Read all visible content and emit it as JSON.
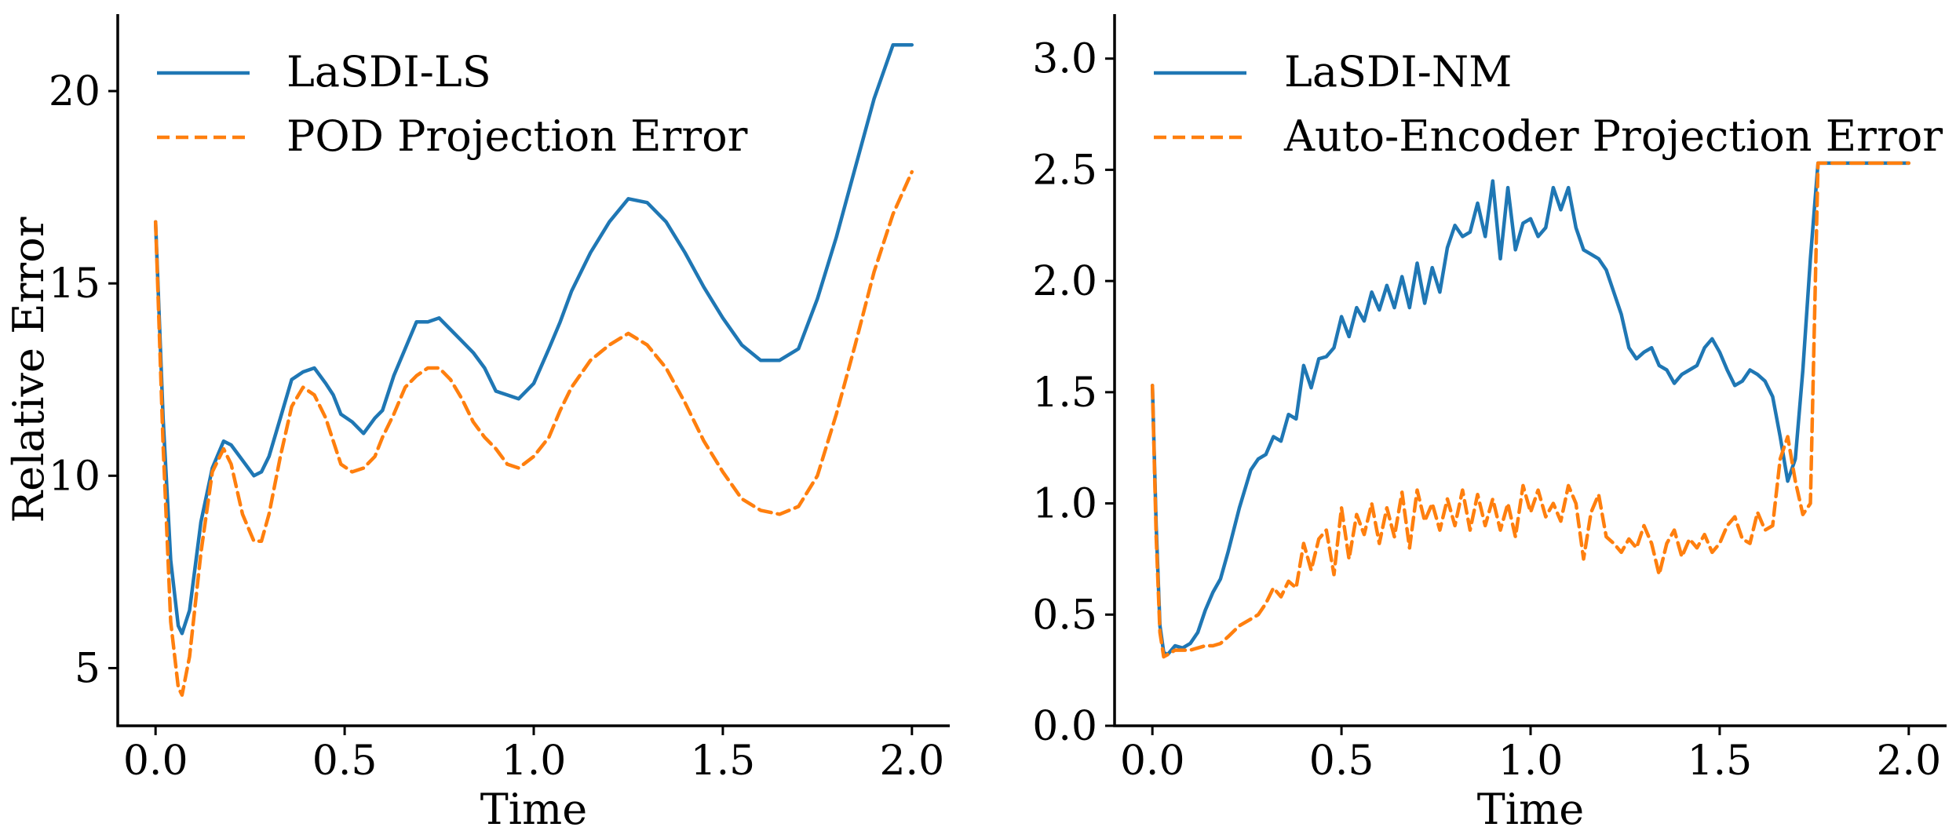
{
  "chart_data": [
    {
      "type": "line",
      "xlabel": "Time",
      "ylabel": "Relative Error",
      "xlim": [
        -0.1,
        2.1
      ],
      "ylim": [
        3.5,
        22.0
      ],
      "xticks": [
        0.0,
        0.5,
        1.0,
        1.5,
        2.0
      ],
      "xtick_labels": [
        "0.0",
        "0.5",
        "1.0",
        "1.5",
        "2.0"
      ],
      "yticks": [
        5,
        10,
        15,
        20
      ],
      "ytick_labels": [
        "5",
        "10",
        "15",
        "20"
      ],
      "grid": false,
      "legend_position": "top-left",
      "series": [
        {
          "name": "LaSDI-LS",
          "color": "#1f77b4",
          "style": "solid",
          "x": [
            0.0,
            0.02,
            0.04,
            0.06,
            0.07,
            0.09,
            0.12,
            0.15,
            0.18,
            0.2,
            0.23,
            0.26,
            0.28,
            0.3,
            0.33,
            0.36,
            0.39,
            0.42,
            0.45,
            0.47,
            0.49,
            0.52,
            0.55,
            0.58,
            0.6,
            0.63,
            0.66,
            0.69,
            0.72,
            0.75,
            0.78,
            0.81,
            0.84,
            0.87,
            0.9,
            0.93,
            0.96,
            1.0,
            1.04,
            1.07,
            1.1,
            1.15,
            1.2,
            1.25,
            1.3,
            1.35,
            1.4,
            1.45,
            1.5,
            1.55,
            1.6,
            1.65,
            1.7,
            1.75,
            1.8,
            1.85,
            1.9,
            1.95,
            2.0
          ],
          "y": [
            16.6,
            11.5,
            7.8,
            6.1,
            5.9,
            6.5,
            8.8,
            10.2,
            10.9,
            10.8,
            10.4,
            10.0,
            10.1,
            10.5,
            11.5,
            12.5,
            12.7,
            12.8,
            12.4,
            12.1,
            11.6,
            11.4,
            11.1,
            11.5,
            11.7,
            12.6,
            13.3,
            14.0,
            14.0,
            14.1,
            13.8,
            13.5,
            13.2,
            12.8,
            12.2,
            12.1,
            12.0,
            12.4,
            13.3,
            14.0,
            14.8,
            15.8,
            16.6,
            17.2,
            17.1,
            16.6,
            15.8,
            14.9,
            14.1,
            13.4,
            13.0,
            13.0,
            13.3,
            14.6,
            16.2,
            18.0,
            19.8,
            21.2,
            21.2
          ]
        },
        {
          "name": "POD Projection Error",
          "color": "#ff7f0e",
          "style": "dashed",
          "x": [
            0.0,
            0.02,
            0.04,
            0.06,
            0.07,
            0.09,
            0.12,
            0.15,
            0.18,
            0.2,
            0.23,
            0.26,
            0.28,
            0.3,
            0.33,
            0.36,
            0.39,
            0.42,
            0.45,
            0.47,
            0.49,
            0.52,
            0.55,
            0.58,
            0.6,
            0.63,
            0.66,
            0.69,
            0.72,
            0.75,
            0.78,
            0.81,
            0.84,
            0.87,
            0.9,
            0.93,
            0.96,
            1.0,
            1.04,
            1.07,
            1.1,
            1.15,
            1.2,
            1.25,
            1.3,
            1.35,
            1.4,
            1.45,
            1.5,
            1.55,
            1.6,
            1.65,
            1.7,
            1.75,
            1.8,
            1.85,
            1.9,
            1.95,
            2.0
          ],
          "y": [
            16.6,
            10.8,
            6.2,
            4.5,
            4.3,
            5.3,
            8.0,
            10.1,
            10.7,
            10.3,
            9.0,
            8.3,
            8.3,
            9.0,
            10.5,
            11.8,
            12.3,
            12.1,
            11.5,
            10.9,
            10.3,
            10.1,
            10.2,
            10.5,
            11.0,
            11.6,
            12.3,
            12.6,
            12.8,
            12.8,
            12.5,
            12.0,
            11.4,
            11.0,
            10.7,
            10.3,
            10.2,
            10.5,
            11.0,
            11.7,
            12.3,
            13.0,
            13.4,
            13.7,
            13.4,
            12.8,
            11.9,
            10.9,
            10.1,
            9.4,
            9.1,
            9.0,
            9.2,
            10.0,
            11.6,
            13.4,
            15.3,
            16.8,
            17.9
          ]
        }
      ]
    },
    {
      "type": "line",
      "xlabel": "Time",
      "ylabel": "",
      "xlim": [
        -0.1,
        2.1
      ],
      "ylim": [
        0.0,
        3.2
      ],
      "xticks": [
        0.0,
        0.5,
        1.0,
        1.5,
        2.0
      ],
      "xtick_labels": [
        "0.0",
        "0.5",
        "1.0",
        "1.5",
        "2.0"
      ],
      "yticks": [
        0.0,
        0.5,
        1.0,
        1.5,
        2.0,
        2.5,
        3.0
      ],
      "ytick_labels": [
        "0.0",
        "0.5",
        "1.0",
        "1.5",
        "2.0",
        "2.5",
        "3.0"
      ],
      "grid": false,
      "legend_position": "top-left",
      "series": [
        {
          "name": "LaSDI-NM",
          "color": "#1f77b4",
          "style": "solid",
          "x": [
            0.0,
            0.01,
            0.02,
            0.03,
            0.04,
            0.06,
            0.08,
            0.1,
            0.12,
            0.14,
            0.16,
            0.18,
            0.2,
            0.23,
            0.26,
            0.28,
            0.3,
            0.32,
            0.34,
            0.36,
            0.38,
            0.4,
            0.42,
            0.44,
            0.46,
            0.48,
            0.5,
            0.52,
            0.54,
            0.56,
            0.58,
            0.6,
            0.62,
            0.64,
            0.66,
            0.68,
            0.7,
            0.72,
            0.74,
            0.76,
            0.78,
            0.8,
            0.82,
            0.84,
            0.86,
            0.88,
            0.9,
            0.92,
            0.94,
            0.96,
            0.98,
            1.0,
            1.02,
            1.04,
            1.06,
            1.08,
            1.1,
            1.12,
            1.14,
            1.16,
            1.18,
            1.2,
            1.22,
            1.24,
            1.26,
            1.28,
            1.3,
            1.32,
            1.34,
            1.36,
            1.38,
            1.4,
            1.42,
            1.44,
            1.46,
            1.48,
            1.5,
            1.52,
            1.54,
            1.56,
            1.58,
            1.6,
            1.62,
            1.64,
            1.66,
            1.68,
            1.7,
            1.72,
            1.74,
            1.76,
            1.78,
            1.8,
            1.82,
            1.84,
            1.86,
            1.88,
            1.9,
            1.92,
            1.94,
            1.96,
            1.98,
            2.0
          ],
          "y": [
            1.53,
            0.9,
            0.45,
            0.33,
            0.32,
            0.36,
            0.35,
            0.37,
            0.42,
            0.52,
            0.6,
            0.66,
            0.78,
            0.98,
            1.15,
            1.2,
            1.22,
            1.3,
            1.28,
            1.4,
            1.38,
            1.62,
            1.52,
            1.65,
            1.66,
            1.7,
            1.84,
            1.75,
            1.88,
            1.82,
            1.95,
            1.87,
            1.98,
            1.88,
            2.02,
            1.88,
            2.08,
            1.9,
            2.06,
            1.95,
            2.15,
            2.25,
            2.2,
            2.22,
            2.35,
            2.2,
            2.45,
            2.1,
            2.42,
            2.14,
            2.26,
            2.28,
            2.2,
            2.24,
            2.42,
            2.32,
            2.42,
            2.24,
            2.14,
            2.12,
            2.1,
            2.05,
            1.95,
            1.85,
            1.7,
            1.65,
            1.68,
            1.7,
            1.62,
            1.6,
            1.54,
            1.58,
            1.6,
            1.62,
            1.7,
            1.74,
            1.68,
            1.6,
            1.53,
            1.55,
            1.6,
            1.58,
            1.55,
            1.48,
            1.3,
            1.1,
            1.2,
            1.6,
            2.1,
            2.53,
            2.53,
            2.53,
            2.53,
            2.53,
            2.53,
            2.53,
            2.53,
            2.53,
            2.53,
            2.53,
            2.53,
            2.53
          ]
        },
        {
          "name": "Auto-Encoder Projection Error",
          "color": "#ff7f0e",
          "style": "dashed",
          "x": [
            0.0,
            0.01,
            0.02,
            0.03,
            0.04,
            0.06,
            0.08,
            0.1,
            0.12,
            0.14,
            0.16,
            0.18,
            0.2,
            0.23,
            0.26,
            0.28,
            0.3,
            0.32,
            0.34,
            0.36,
            0.38,
            0.4,
            0.42,
            0.44,
            0.46,
            0.48,
            0.5,
            0.52,
            0.54,
            0.56,
            0.58,
            0.6,
            0.62,
            0.64,
            0.66,
            0.68,
            0.7,
            0.72,
            0.74,
            0.76,
            0.78,
            0.8,
            0.82,
            0.84,
            0.86,
            0.88,
            0.9,
            0.92,
            0.94,
            0.96,
            0.98,
            1.0,
            1.02,
            1.04,
            1.06,
            1.08,
            1.1,
            1.12,
            1.14,
            1.16,
            1.18,
            1.2,
            1.22,
            1.24,
            1.26,
            1.28,
            1.3,
            1.32,
            1.34,
            1.36,
            1.38,
            1.4,
            1.42,
            1.44,
            1.46,
            1.48,
            1.5,
            1.52,
            1.54,
            1.56,
            1.58,
            1.6,
            1.62,
            1.64,
            1.66,
            1.68,
            1.7,
            1.72,
            1.74,
            1.76,
            1.78,
            1.8,
            1.82,
            1.84,
            1.86,
            1.88,
            1.9,
            1.92,
            1.94,
            1.96,
            1.98,
            2.0
          ],
          "y": [
            1.53,
            0.85,
            0.42,
            0.31,
            0.32,
            0.34,
            0.34,
            0.34,
            0.35,
            0.36,
            0.36,
            0.37,
            0.4,
            0.45,
            0.48,
            0.5,
            0.55,
            0.62,
            0.58,
            0.65,
            0.62,
            0.82,
            0.7,
            0.84,
            0.88,
            0.68,
            0.98,
            0.75,
            0.95,
            0.86,
            1.0,
            0.82,
            0.98,
            0.85,
            1.05,
            0.8,
            1.06,
            0.92,
            1.0,
            0.88,
            1.02,
            0.9,
            1.06,
            0.88,
            1.04,
            0.9,
            1.02,
            0.88,
            1.0,
            0.85,
            1.08,
            0.96,
            1.06,
            0.94,
            1.0,
            0.92,
            1.08,
            1.0,
            0.75,
            0.96,
            1.04,
            0.85,
            0.82,
            0.78,
            0.84,
            0.8,
            0.9,
            0.82,
            0.68,
            0.82,
            0.88,
            0.76,
            0.84,
            0.8,
            0.86,
            0.78,
            0.82,
            0.9,
            0.94,
            0.84,
            0.82,
            0.96,
            0.88,
            0.9,
            1.2,
            1.3,
            1.1,
            0.95,
            1.0,
            2.53,
            2.53,
            2.53,
            2.53,
            2.53,
            2.53,
            2.53,
            2.53,
            2.53,
            2.53,
            2.53,
            2.53,
            2.53
          ]
        }
      ]
    }
  ]
}
